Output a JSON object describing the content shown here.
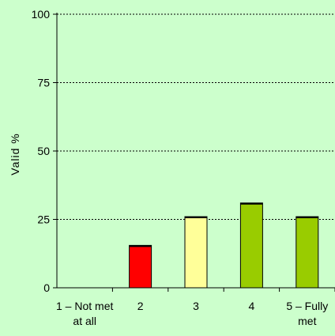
{
  "chart_data": {
    "type": "bar",
    "title": "",
    "xlabel": "",
    "ylabel": "Valid %",
    "categories": [
      [
        "1 – Not met",
        "at all"
      ],
      [
        "2"
      ],
      [
        "3"
      ],
      [
        "4"
      ],
      [
        "5 – Fully",
        "met"
      ]
    ],
    "values": [
      0,
      15.5,
      26,
      31,
      26
    ],
    "bar_colors": [
      "#cc0000",
      "#ff0000",
      "#ffff99",
      "#99cc00",
      "#99cc00"
    ],
    "ylim": [
      0,
      100
    ],
    "yticks": [
      0,
      25,
      50,
      75,
      100
    ],
    "grid": true,
    "legend": "none",
    "colors": {
      "background": "#ccffcc",
      "gridline": "#000000",
      "bar_outline": "#000000"
    }
  }
}
